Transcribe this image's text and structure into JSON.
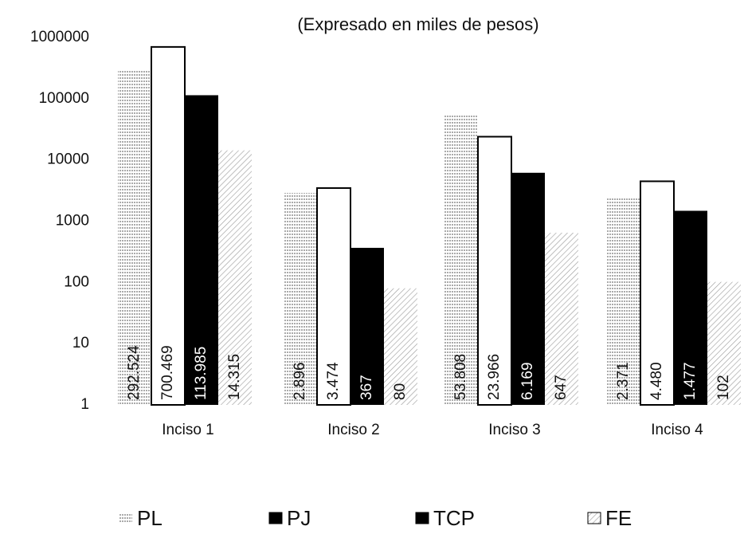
{
  "chart_data": {
    "type": "bar",
    "title": "(Expresado en miles de pesos)",
    "categories": [
      "Inciso 1",
      "Inciso 2",
      "Inciso 3",
      "Inciso 4"
    ],
    "series": [
      {
        "name": "PL",
        "color": "#777777",
        "values": [
          292524,
          2896,
          53808,
          2371
        ],
        "value_labels": [
          "292.524",
          "2.896",
          "53.808",
          "2.371"
        ]
      },
      {
        "name": "PJ",
        "color": "#ffffff",
        "values": [
          700469,
          3474,
          23966,
          4480
        ],
        "value_labels": [
          "700.469",
          "3.474",
          "23.966",
          "4.480"
        ]
      },
      {
        "name": "TCP",
        "color": "#000000",
        "values": [
          113985,
          367,
          6169,
          1477
        ],
        "value_labels": [
          "113.985",
          "367",
          "6.169",
          "1.477"
        ]
      },
      {
        "name": "FE",
        "color": "#999999",
        "values": [
          14315,
          80,
          647,
          102
        ],
        "value_labels": [
          "14.315",
          "80",
          "647",
          "102"
        ]
      }
    ],
    "ylim": [
      1,
      1000000
    ],
    "yticks": [
      1,
      10,
      100,
      1000,
      10000,
      100000,
      1000000
    ],
    "log_scale": true,
    "grid": false,
    "legend": "bottom"
  }
}
